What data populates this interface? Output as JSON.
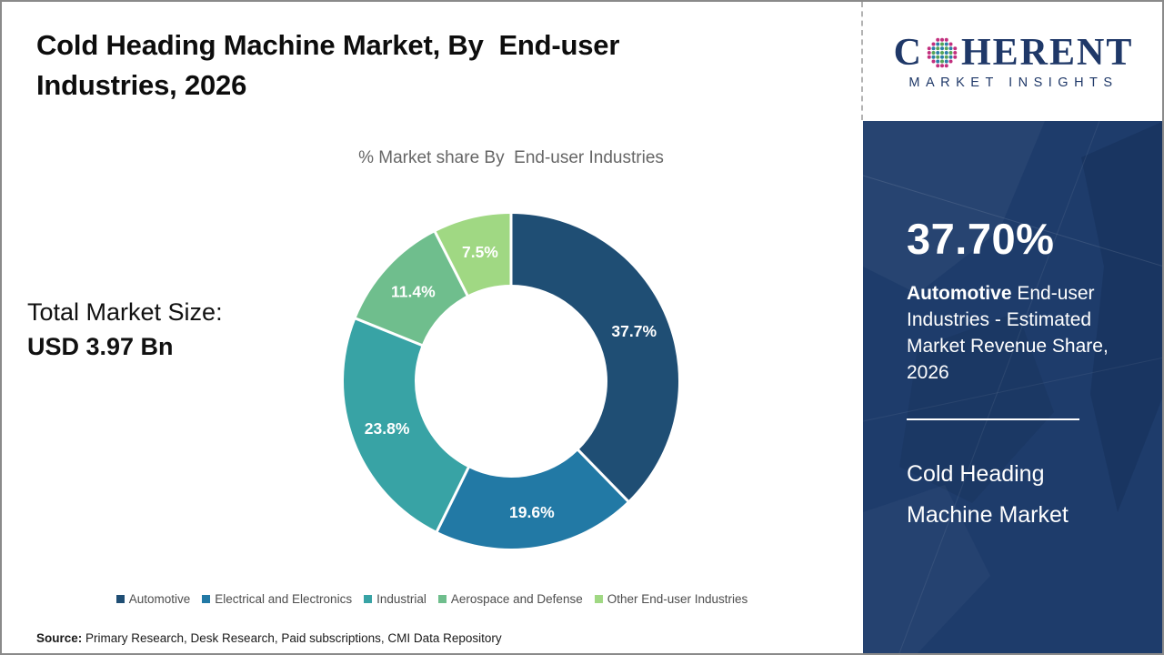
{
  "header": {
    "title": "Cold Heading Machine Market, By  End-user\nIndustries, 2026"
  },
  "chart_data": {
    "type": "pie",
    "donut": true,
    "title": "% Market share By  End-user Industries",
    "categories": [
      "Automotive",
      "Electrical and Electronics",
      "Industrial",
      "Aerospace and Defense",
      "Other End-user Industries"
    ],
    "values": [
      37.7,
      19.6,
      23.8,
      11.4,
      7.5
    ],
    "labels": [
      "37.7%",
      "19.6%",
      "23.8%",
      "11.4%",
      "7.5%"
    ],
    "colors": [
      "#1f4e74",
      "#2279a5",
      "#38a3a5",
      "#6fbe8d",
      "#a0d883"
    ],
    "start_angle_deg": 0,
    "direction": "clockwise",
    "legend_position": "bottom",
    "label_color": "#ffffff"
  },
  "left_panel": {
    "total_label": "Total Market Size:",
    "total_value": "USD 3.97 Bn"
  },
  "logo": {
    "brand_c": "C",
    "brand_rest": "HERENT",
    "tagline": "MARKET INSIGHTS",
    "navy": "#1f3868",
    "dot_teal": "#2b7fa8",
    "dot_green": "#55a457",
    "dot_pink": "#c2307e"
  },
  "sidebar": {
    "stat_value": "37.70%",
    "stat_bold": "Automotive",
    "stat_rest": " End-user Industries - Estimated Market Revenue Share, 2026",
    "market_name": "Cold Heading Machine Market",
    "background": "#1e3c6b"
  },
  "footer": {
    "source_label": "Source:",
    "source_text": " Primary Research, Desk Research, Paid subscriptions, CMI Data Repository"
  }
}
